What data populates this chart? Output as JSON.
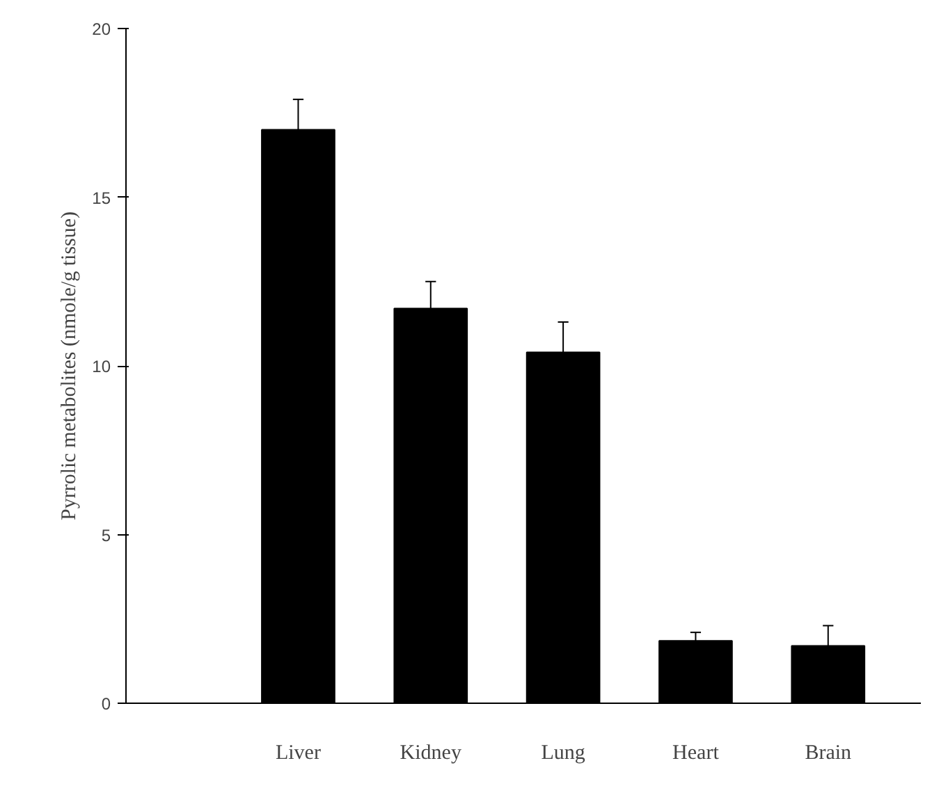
{
  "chart_data": {
    "type": "bar",
    "ylabel": "Pyrrolic metabolites (nmole/g tissue)",
    "categories": [
      "Liver",
      "Kidney",
      "Lung",
      "Heart",
      "Brain"
    ],
    "values": [
      17.0,
      11.7,
      10.4,
      1.85,
      1.7
    ],
    "errors": [
      [
        17.0,
        17.9
      ],
      [
        11.7,
        12.5
      ],
      [
        10.4,
        11.3
      ],
      [
        1.85,
        2.1
      ],
      [
        1.7,
        2.3
      ]
    ],
    "color": "#000000",
    "ylim": [
      0,
      20
    ],
    "yticks": [
      0,
      5,
      10,
      15,
      20
    ],
    "grid": false
  }
}
